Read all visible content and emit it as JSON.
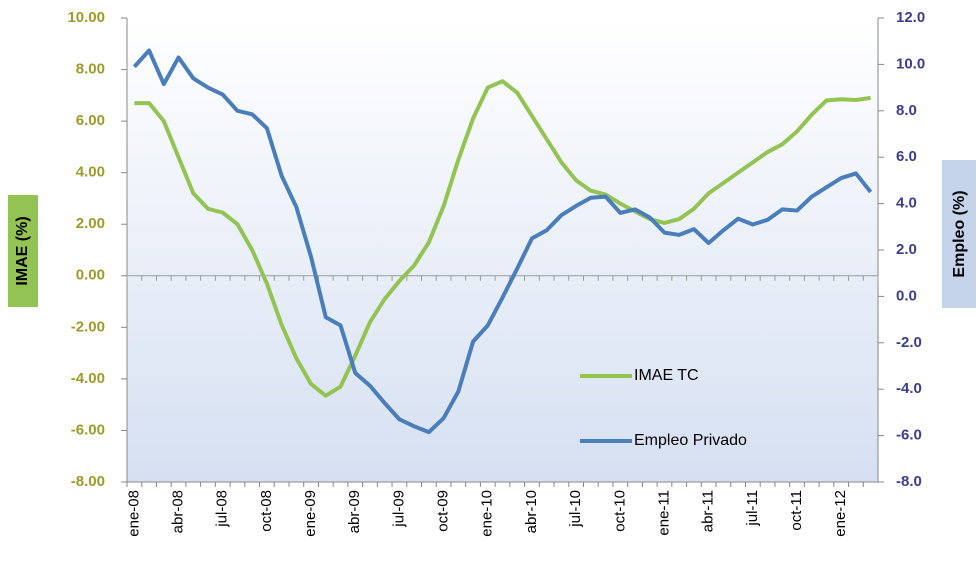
{
  "chart_data": {
    "type": "line",
    "categories": [
      "ene-08",
      null,
      null,
      "abr-08",
      null,
      null,
      "jul-08",
      null,
      null,
      "oct-08",
      null,
      null,
      "ene-09",
      null,
      null,
      "abr-09",
      null,
      null,
      "jul-09",
      null,
      null,
      "oct-09",
      null,
      null,
      "ene-10",
      null,
      null,
      "abr-10",
      null,
      null,
      "jul-10",
      null,
      null,
      "oct-10",
      null,
      null,
      "ene-11",
      null,
      null,
      "abr-11",
      null,
      null,
      "jul-11",
      null,
      null,
      "oct-11",
      null,
      null,
      "ene-12",
      null,
      null
    ],
    "series": [
      {
        "name": "IMAE TC",
        "color": "#92c353",
        "axis": "y",
        "values": [
          6.7,
          6.7,
          6.0,
          4.6,
          3.2,
          2.6,
          2.45,
          2.0,
          1.0,
          -0.3,
          -1.9,
          -3.2,
          -4.2,
          -4.65,
          -4.3,
          -3.1,
          -1.8,
          -0.9,
          -0.2,
          0.4,
          1.3,
          2.7,
          4.5,
          6.1,
          7.3,
          7.55,
          7.1,
          6.2,
          5.3,
          4.4,
          3.7,
          3.3,
          3.15,
          2.8,
          2.5,
          2.2,
          2.05,
          2.2,
          2.6,
          3.2,
          3.6,
          4.0,
          4.4,
          4.8,
          5.1,
          5.6,
          6.25,
          6.8,
          6.85,
          6.82,
          6.9
        ]
      },
      {
        "name": "Empleo Privado",
        "color": "#4a7ebb",
        "axis": "y2",
        "values": [
          9.9,
          10.6,
          9.15,
          10.3,
          9.4,
          9.0,
          8.7,
          8.0,
          7.85,
          7.25,
          5.2,
          3.85,
          1.7,
          -0.9,
          -1.25,
          -3.3,
          -3.85,
          -4.6,
          -5.3,
          -5.6,
          -5.85,
          -5.25,
          -4.1,
          -1.95,
          -1.25,
          -0.05,
          1.2,
          2.5,
          2.85,
          3.5,
          3.9,
          4.25,
          4.3,
          3.6,
          3.75,
          3.4,
          2.75,
          2.65,
          2.9,
          2.3,
          2.85,
          3.35,
          3.1,
          3.3,
          3.75,
          3.7,
          4.3,
          4.7,
          5.1,
          5.3,
          4.5
        ]
      }
    ],
    "ylabel": "IMAE (%)",
    "y2label": "Empleo (%)",
    "ylim": [
      -8,
      10
    ],
    "yticks": [
      {
        "value": -8,
        "label": "-8.00"
      },
      {
        "value": -6,
        "label": "-6.00"
      },
      {
        "value": -4,
        "label": "-4.00"
      },
      {
        "value": -2,
        "label": "-2.00"
      },
      {
        "value": 0,
        "label": "0.00"
      },
      {
        "value": 2,
        "label": "2.00"
      },
      {
        "value": 4,
        "label": "4.00"
      },
      {
        "value": 6,
        "label": "6.00"
      },
      {
        "value": 8,
        "label": "8.00"
      },
      {
        "value": 10,
        "label": "10.00"
      }
    ],
    "y2lim": [
      -8,
      12
    ],
    "y2ticks": [
      {
        "value": -8,
        "label": "-8.0"
      },
      {
        "value": -6,
        "label": "-6.0"
      },
      {
        "value": -4,
        "label": "-4.0"
      },
      {
        "value": -2,
        "label": "-2.0"
      },
      {
        "value": 0,
        "label": "0.0"
      },
      {
        "value": 2,
        "label": "2.0"
      },
      {
        "value": 4,
        "label": "4.0"
      },
      {
        "value": 6,
        "label": "6.0"
      },
      {
        "value": 8,
        "label": "8.0"
      },
      {
        "value": 10,
        "label": "10.0"
      },
      {
        "value": 12,
        "label": "12.0"
      }
    ]
  }
}
